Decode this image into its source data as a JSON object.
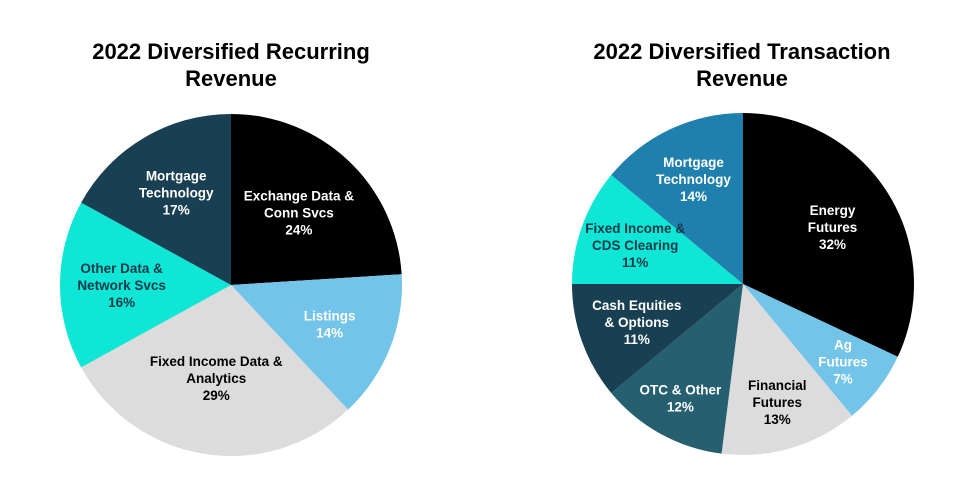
{
  "chart_data": [
    {
      "type": "pie",
      "title_lines": [
        "2022 Diversified Recurring",
        "Revenue"
      ],
      "start": "12 o'clock, clockwise",
      "slices": [
        {
          "lines": [
            "Exchange Data &",
            "Conn Svcs",
            "24%"
          ],
          "value": 24,
          "color": "#000000",
          "text_color": "#ffffff"
        },
        {
          "lines": [
            "Listings",
            "14%"
          ],
          "value": 14,
          "color": "#72c4e9",
          "text_color": "#ffffff"
        },
        {
          "lines": [
            "Fixed Income Data &",
            "Analytics",
            "29%"
          ],
          "value": 29,
          "color": "#dcdcdc",
          "text_color": "#000000"
        },
        {
          "lines": [
            "Other Data &",
            "Network Svcs",
            "16%"
          ],
          "value": 16,
          "color": "#0fe6d6",
          "text_color": "#0f3a47"
        },
        {
          "lines": [
            "Mortgage",
            "Technology",
            "17%"
          ],
          "value": 17,
          "color": "#183f52",
          "text_color": "#ffffff"
        }
      ]
    },
    {
      "type": "pie",
      "title_lines": [
        "2022 Diversified Transaction",
        "Revenue"
      ],
      "start": "12 o'clock, clockwise",
      "slices": [
        {
          "lines": [
            "Energy",
            "Futures",
            "32%"
          ],
          "value": 32,
          "color": "#000000",
          "text_color": "#ffffff"
        },
        {
          "lines": [
            "Ag",
            "Futures",
            "7%"
          ],
          "value": 7,
          "color": "#72c4e9",
          "text_color": "#ffffff"
        },
        {
          "lines": [
            "Financial",
            "Futures",
            "13%"
          ],
          "value": 13,
          "color": "#dcdcdc",
          "text_color": "#000000"
        },
        {
          "lines": [
            "OTC & Other",
            "12%"
          ],
          "value": 12,
          "color": "#255f70",
          "text_color": "#ffffff"
        },
        {
          "lines": [
            "Cash Equities",
            "& Options",
            "11%"
          ],
          "value": 11,
          "color": "#183f52",
          "text_color": "#ffffff"
        },
        {
          "lines": [
            "Fixed Income &",
            "CDS Clearing",
            "11%"
          ],
          "value": 11,
          "color": "#0fe6d6",
          "text_color": "#0f3a47"
        },
        {
          "lines": [
            "Mortgage",
            "Technology",
            "14%"
          ],
          "value": 14,
          "color": "#1f7fad",
          "text_color": "#ffffff"
        }
      ]
    }
  ]
}
